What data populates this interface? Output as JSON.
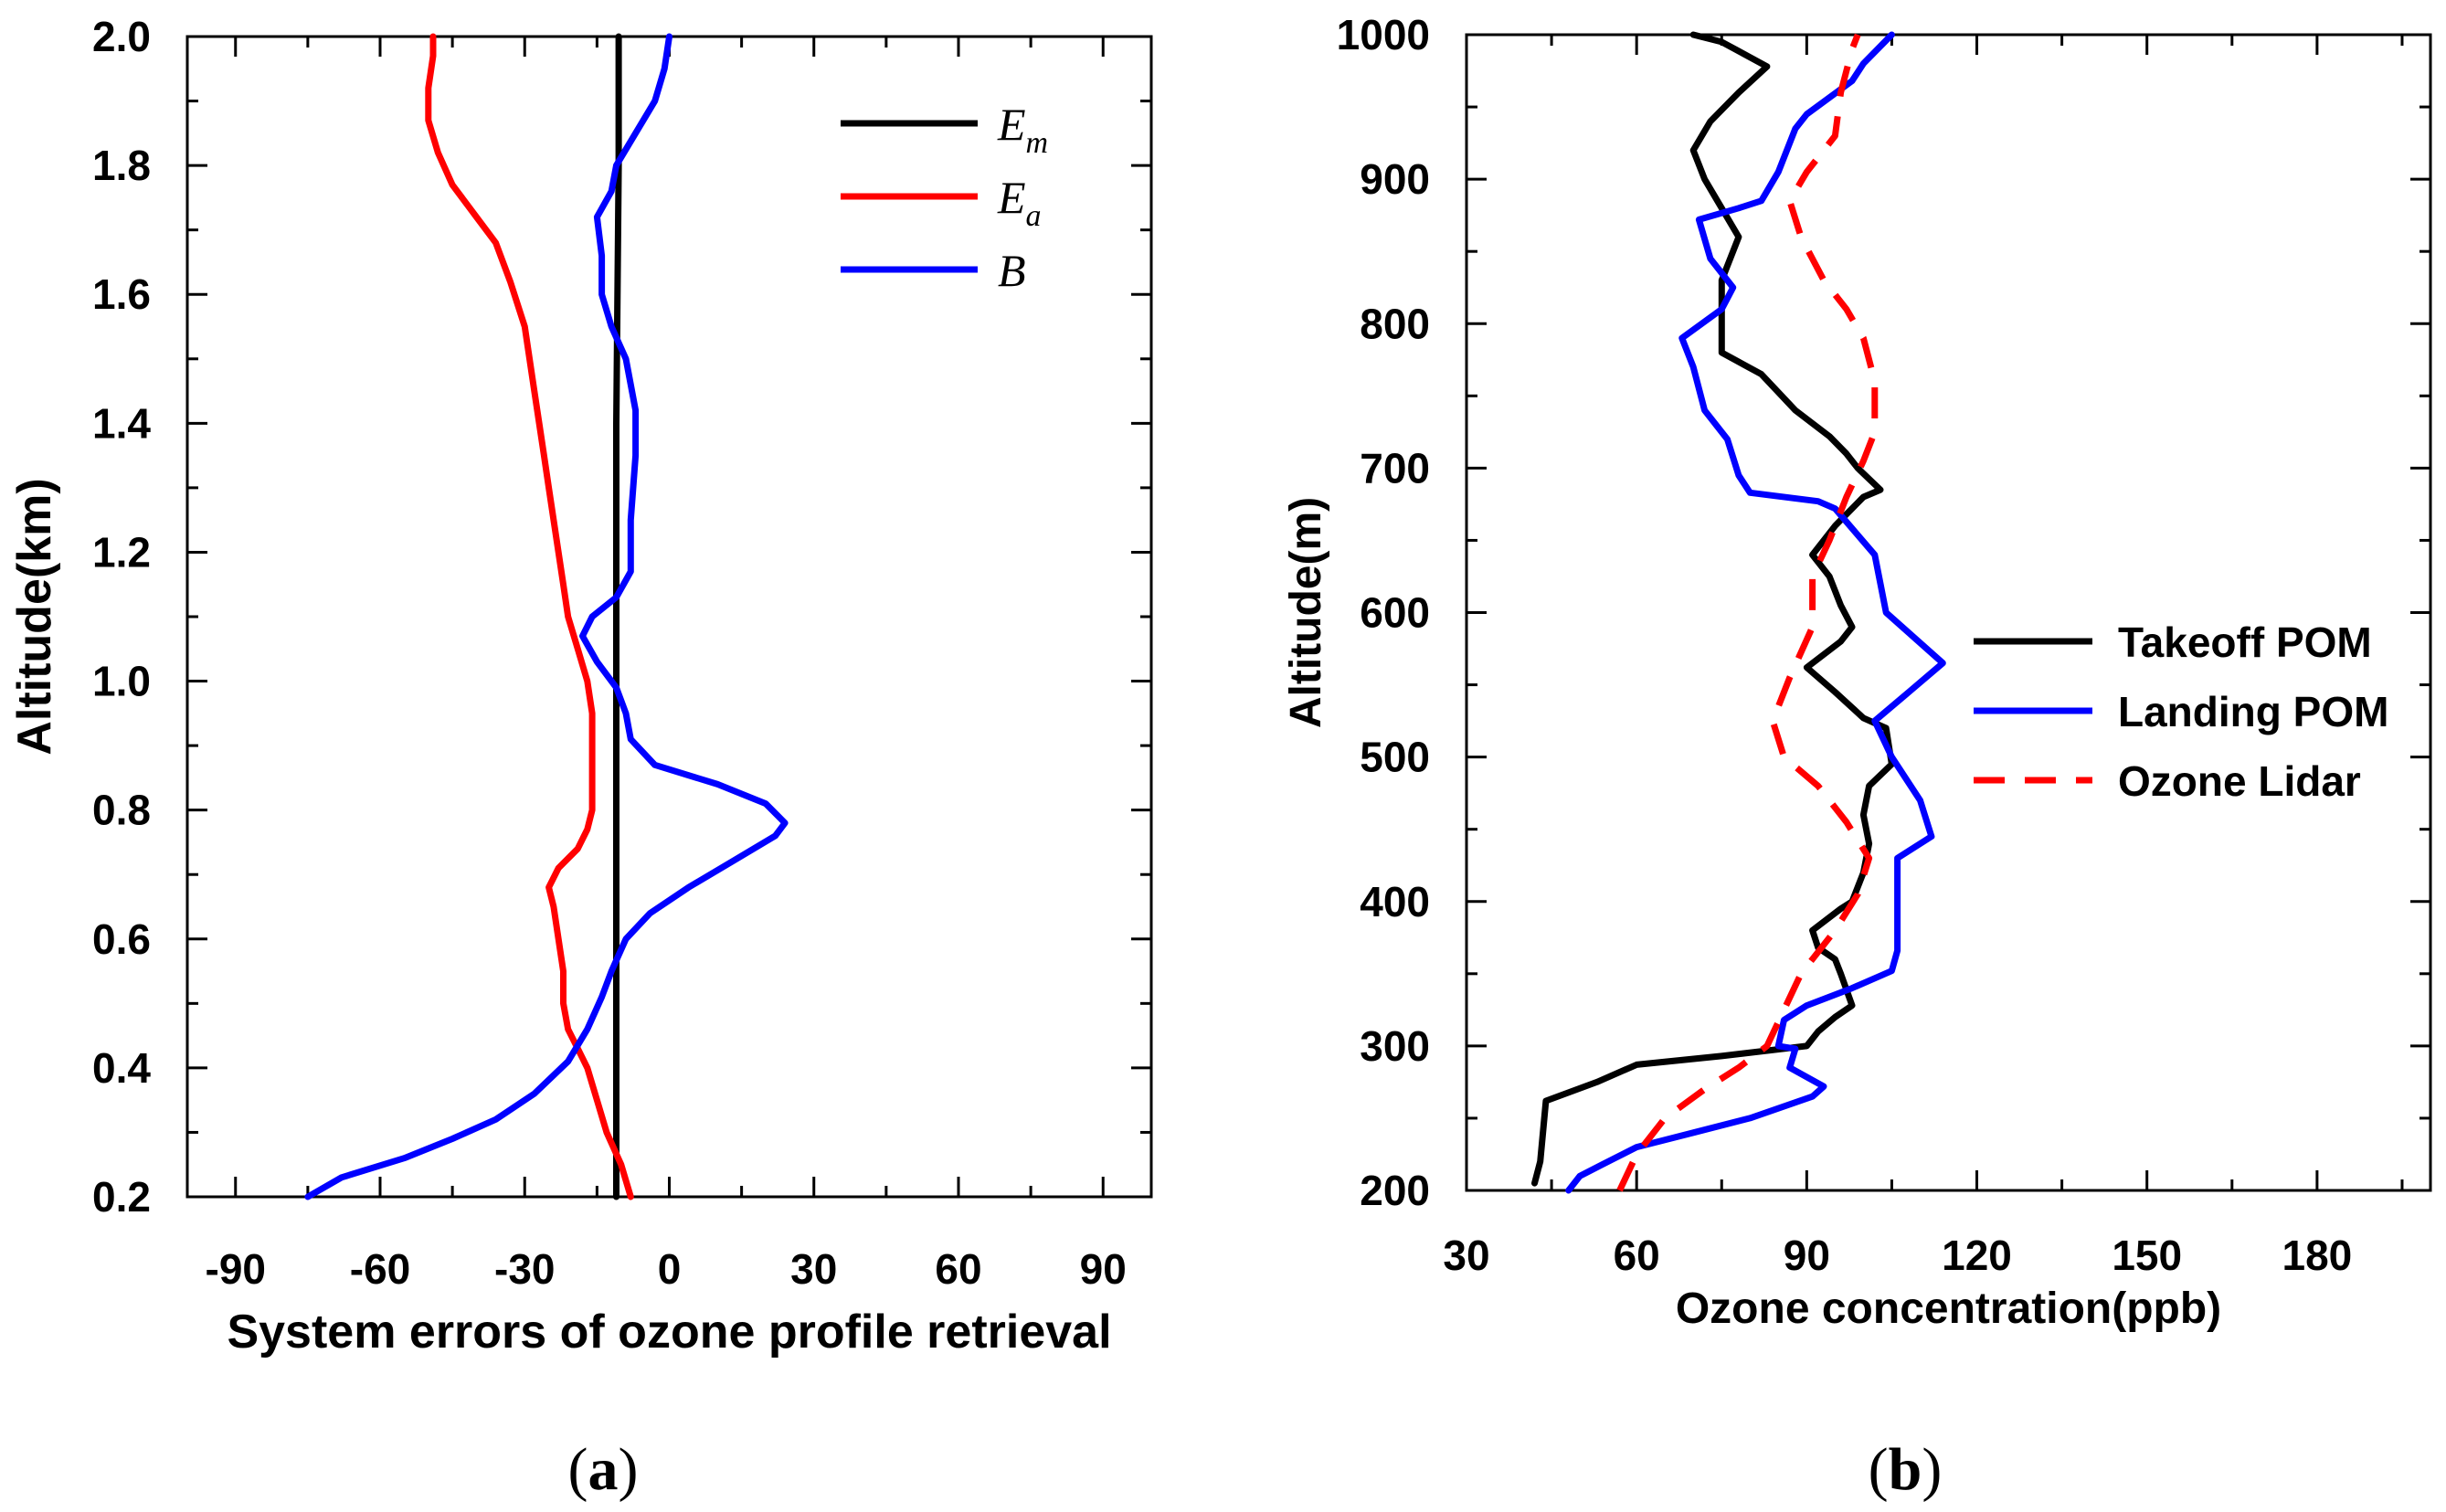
{
  "chart_data": [
    {
      "panel": "a",
      "panel_label_open": "(",
      "panel_label_letter": "a",
      "panel_label_close": ")",
      "type": "line",
      "xlabel": "System errors of ozone profile retrieval",
      "ylabel": "Altitude(km)",
      "xlim": [
        -100,
        100
      ],
      "ylim": [
        0.2,
        2.0
      ],
      "xticks": [
        -90,
        -60,
        -30,
        0,
        30,
        60,
        90
      ],
      "xtick_labels": [
        "-90",
        "-60",
        "-30",
        "0",
        "30",
        "60",
        "90"
      ],
      "yticks": [
        0.2,
        0.4,
        0.6,
        0.8,
        1.0,
        1.2,
        1.4,
        1.6,
        1.8,
        2.0
      ],
      "ytick_labels": [
        "0.2",
        "0.4",
        "0.6",
        "0.8",
        "1.0",
        "1.2",
        "1.4",
        "1.6",
        "1.8",
        "2.0"
      ],
      "legend_position": "top-right",
      "series": [
        {
          "name": "E",
          "subscript": "m",
          "color": "#000000",
          "points": [
            [
              -11,
              0.2
            ],
            [
              -11,
              0.6
            ],
            [
              -11,
              1.0
            ],
            [
              -11,
              1.4
            ],
            [
              -10.5,
              1.8
            ],
            [
              -10.5,
              2.0
            ]
          ]
        },
        {
          "name": "E",
          "subscript": "a",
          "color": "#ff0000",
          "points": [
            [
              -8,
              0.2
            ],
            [
              -10,
              0.25
            ],
            [
              -13,
              0.3
            ],
            [
              -15,
              0.35
            ],
            [
              -17,
              0.4
            ],
            [
              -19,
              0.43
            ],
            [
              -21,
              0.46
            ],
            [
              -22,
              0.5
            ],
            [
              -22,
              0.55
            ],
            [
              -23,
              0.6
            ],
            [
              -24,
              0.65
            ],
            [
              -25,
              0.68
            ],
            [
              -23,
              0.71
            ],
            [
              -19,
              0.74
            ],
            [
              -17,
              0.77
            ],
            [
              -16,
              0.8
            ],
            [
              -16,
              0.85
            ],
            [
              -16,
              0.9
            ],
            [
              -16,
              0.95
            ],
            [
              -17,
              1.0
            ],
            [
              -19,
              1.05
            ],
            [
              -21,
              1.1
            ],
            [
              -22,
              1.15
            ],
            [
              -24,
              1.25
            ],
            [
              -25,
              1.3
            ],
            [
              -26,
              1.35
            ],
            [
              -27,
              1.4
            ],
            [
              -28,
              1.45
            ],
            [
              -30,
              1.55
            ],
            [
              -33,
              1.62
            ],
            [
              -36,
              1.68
            ],
            [
              -40,
              1.72
            ],
            [
              -45,
              1.77
            ],
            [
              -48,
              1.82
            ],
            [
              -50,
              1.87
            ],
            [
              -50,
              1.92
            ],
            [
              -49,
              1.97
            ],
            [
              -49,
              2.0
            ]
          ]
        },
        {
          "name": "B",
          "subscript": "",
          "color": "#0000ff",
          "points": [
            [
              -75,
              0.2
            ],
            [
              -68,
              0.23
            ],
            [
              -55,
              0.26
            ],
            [
              -45,
              0.29
            ],
            [
              -36,
              0.32
            ],
            [
              -28,
              0.36
            ],
            [
              -21,
              0.41
            ],
            [
              -17,
              0.46
            ],
            [
              -14,
              0.51
            ],
            [
              -12,
              0.55
            ],
            [
              -9,
              0.6
            ],
            [
              -4,
              0.64
            ],
            [
              4,
              0.68
            ],
            [
              13,
              0.72
            ],
            [
              22,
              0.76
            ],
            [
              24,
              0.78
            ],
            [
              20,
              0.81
            ],
            [
              10,
              0.84
            ],
            [
              -3,
              0.87
            ],
            [
              -8,
              0.91
            ],
            [
              -9,
              0.95
            ],
            [
              -11,
              0.99
            ],
            [
              -15,
              1.03
            ],
            [
              -18,
              1.07
            ],
            [
              -16,
              1.1
            ],
            [
              -11,
              1.13
            ],
            [
              -8,
              1.17
            ],
            [
              -8,
              1.25
            ],
            [
              -7,
              1.35
            ],
            [
              -7,
              1.42
            ],
            [
              -9,
              1.5
            ],
            [
              -12,
              1.55
            ],
            [
              -14,
              1.6
            ],
            [
              -14,
              1.66
            ],
            [
              -15,
              1.72
            ],
            [
              -12,
              1.76
            ],
            [
              -11,
              1.8
            ],
            [
              -7,
              1.85
            ],
            [
              -3,
              1.9
            ],
            [
              -1,
              1.95
            ],
            [
              0,
              2.0
            ]
          ]
        }
      ]
    },
    {
      "panel": "b",
      "panel_label_open": "(",
      "panel_label_letter": "b",
      "panel_label_close": ")",
      "type": "line",
      "xlabel": "Ozone concentration(ppb)",
      "ylabel": "Altitude(m)",
      "xlim": [
        30,
        200
      ],
      "ylim": [
        200,
        1000
      ],
      "xticks": [
        30,
        60,
        90,
        120,
        150,
        180
      ],
      "xtick_labels": [
        "30",
        "60",
        "90",
        "120",
        "150",
        "180"
      ],
      "yticks": [
        200,
        300,
        400,
        500,
        600,
        700,
        800,
        900,
        1000
      ],
      "ytick_labels": [
        "200",
        "300",
        "400",
        "500",
        "600",
        "700",
        "800",
        "900",
        "1000"
      ],
      "legend_position": "center-right",
      "series": [
        {
          "name": "Takeoff POM",
          "color": "#000000",
          "dash": false,
          "points": [
            [
              42,
              205
            ],
            [
              43,
              220
            ],
            [
              44,
              262
            ],
            [
              53,
              275
            ],
            [
              60,
              287
            ],
            [
              75,
              293
            ],
            [
              90,
              300
            ],
            [
              92,
              310
            ],
            [
              95,
              320
            ],
            [
              98,
              328
            ],
            [
              96,
              350
            ],
            [
              95,
              360
            ],
            [
              92,
              368
            ],
            [
              91,
              380
            ],
            [
              96,
              395
            ],
            [
              98,
              400
            ],
            [
              100,
              420
            ],
            [
              101,
              440
            ],
            [
              100,
              460
            ],
            [
              101,
              480
            ],
            [
              105,
              495
            ],
            [
              104,
              520
            ],
            [
              100,
              527
            ],
            [
              95,
              545
            ],
            [
              90,
              562
            ],
            [
              96,
              580
            ],
            [
              98,
              590
            ],
            [
              96,
              605
            ],
            [
              94,
              625
            ],
            [
              91,
              640
            ],
            [
              95,
              660
            ],
            [
              100,
              680
            ],
            [
              103,
              685
            ],
            [
              99,
              700
            ],
            [
              97,
              710
            ],
            [
              94,
              722
            ],
            [
              88,
              740
            ],
            [
              82,
              765
            ],
            [
              75,
              780
            ],
            [
              75,
              800
            ],
            [
              75,
              830
            ],
            [
              78,
              860
            ],
            [
              75,
              880
            ],
            [
              72,
              900
            ],
            [
              70,
              920
            ],
            [
              73,
              940
            ],
            [
              78,
              960
            ],
            [
              83,
              978
            ],
            [
              75,
              995
            ],
            [
              70,
              1000
            ]
          ]
        },
        {
          "name": "Landing POM",
          "color": "#0000ff",
          "dash": false,
          "points": [
            [
              48,
              200
            ],
            [
              50,
              210
            ],
            [
              54,
              218
            ],
            [
              60,
              230
            ],
            [
              70,
              240
            ],
            [
              80,
              250
            ],
            [
              91,
              265
            ],
            [
              93,
              272
            ],
            [
              87,
              285
            ],
            [
              88,
              298
            ],
            [
              85,
              300
            ],
            [
              86,
              318
            ],
            [
              90,
              328
            ],
            [
              98,
              340
            ],
            [
              105,
              352
            ],
            [
              106,
              366
            ],
            [
              106,
              400
            ],
            [
              106,
              430
            ],
            [
              112,
              445
            ],
            [
              110,
              470
            ],
            [
              105,
              500
            ],
            [
              102,
              525
            ],
            [
              108,
              545
            ],
            [
              114,
              565
            ],
            [
              104,
              600
            ],
            [
              102,
              640
            ],
            [
              95,
              672
            ],
            [
              92,
              677
            ],
            [
              80,
              683
            ],
            [
              78,
              695
            ],
            [
              76,
              720
            ],
            [
              72,
              740
            ],
            [
              70,
              770
            ],
            [
              68,
              790
            ],
            [
              75,
              810
            ],
            [
              77,
              825
            ],
            [
              73,
              845
            ],
            [
              71,
              872
            ],
            [
              78,
              880
            ],
            [
              82,
              885
            ],
            [
              85,
              905
            ],
            [
              88,
              935
            ],
            [
              90,
              945
            ],
            [
              98,
              968
            ],
            [
              100,
              980
            ],
            [
              105,
              1000
            ]
          ]
        },
        {
          "name": "Ozone Lidar",
          "color": "#ff0000",
          "dash": true,
          "points": [
            [
              57,
              200
            ],
            [
              60,
              225
            ],
            [
              65,
              250
            ],
            [
              72,
              270
            ],
            [
              78,
              285
            ],
            [
              83,
              300
            ],
            [
              86,
              325
            ],
            [
              89,
              350
            ],
            [
              95,
              380
            ],
            [
              99,
              405
            ],
            [
              101,
              430
            ],
            [
              97,
              455
            ],
            [
              92,
              480
            ],
            [
              86,
              500
            ],
            [
              84,
              525
            ],
            [
              87,
              555
            ],
            [
              91,
              590
            ],
            [
              91,
              625
            ],
            [
              94,
              650
            ],
            [
              97,
              680
            ],
            [
              100,
              705
            ],
            [
              102,
              725
            ],
            [
              102,
              760
            ],
            [
              100,
              790
            ],
            [
              97,
              810
            ],
            [
              93,
              830
            ],
            [
              89,
              860
            ],
            [
              87,
              885
            ],
            [
              90,
              905
            ],
            [
              95,
              930
            ],
            [
              96,
              960
            ],
            [
              98,
              990
            ],
            [
              99,
              1000
            ]
          ]
        }
      ]
    }
  ]
}
